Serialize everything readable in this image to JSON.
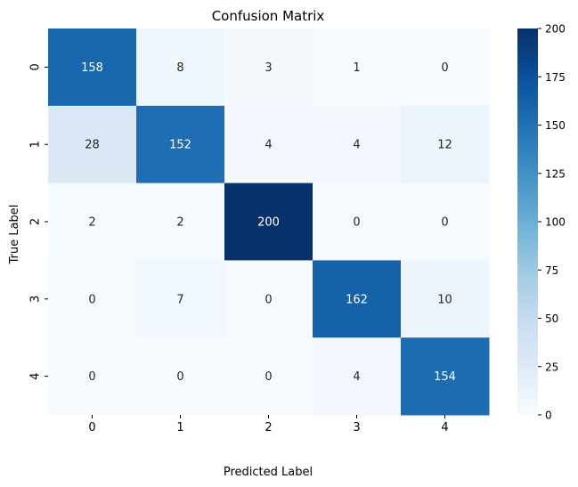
{
  "chart_data": {
    "type": "heatmap",
    "title": "Confusion Matrix",
    "xlabel": "Predicted Label",
    "ylabel": "True Label",
    "x_categories": [
      "0",
      "1",
      "2",
      "3",
      "4"
    ],
    "y_categories": [
      "0",
      "1",
      "2",
      "3",
      "4"
    ],
    "values": [
      [
        158,
        8,
        3,
        1,
        0
      ],
      [
        28,
        152,
        4,
        4,
        12
      ],
      [
        2,
        2,
        200,
        0,
        0
      ],
      [
        0,
        7,
        0,
        162,
        10
      ],
      [
        0,
        0,
        0,
        4,
        154
      ]
    ],
    "colormap": "Blues",
    "colorbar": {
      "range": [
        0,
        200
      ],
      "ticks": [
        0,
        25,
        50,
        75,
        100,
        125,
        150,
        175,
        200
      ]
    },
    "annotations_shown": true,
    "grid": false
  }
}
